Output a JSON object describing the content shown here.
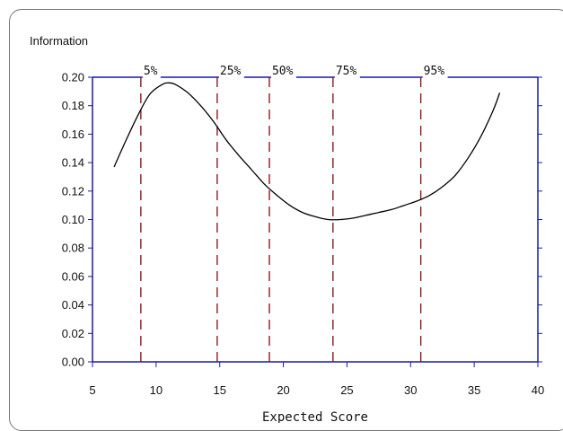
{
  "chart_data": {
    "type": "line",
    "title": "",
    "ylabel": "Information",
    "xlabel": "Expected Score",
    "xlim": [
      5,
      40
    ],
    "ylim": [
      0.0,
      0.2
    ],
    "grid": false,
    "x_ticks": [
      "5",
      "10",
      "15",
      "20",
      "25",
      "30",
      "35",
      "40"
    ],
    "y_ticks": [
      "0.00",
      "0.02",
      "0.04",
      "0.06",
      "0.08",
      "0.10",
      "0.12",
      "0.14",
      "0.16",
      "0.18",
      "0.20"
    ],
    "x_tick_values": [
      5,
      10,
      15,
      20,
      25,
      30,
      35,
      40
    ],
    "y_tick_values": [
      0.0,
      0.02,
      0.04,
      0.06,
      0.08,
      0.1,
      0.12,
      0.14,
      0.16,
      0.18,
      0.2
    ],
    "series": [
      {
        "x": [
          6.7,
          7.5,
          8.5,
          9.5,
          10.5,
          11.0,
          11.5,
          12.5,
          13.5,
          14.5,
          15.5,
          16.5,
          17.5,
          18.5,
          19.5,
          20.5,
          21.5,
          22.5,
          23.5,
          24.5,
          25.5,
          26.5,
          27.5,
          28.5,
          29.5,
          30.5,
          31.5,
          32.5,
          33.5,
          34.5,
          35.5,
          36.5,
          37.0
        ],
        "y": [
          0.137,
          0.153,
          0.172,
          0.188,
          0.195,
          0.196,
          0.195,
          0.189,
          0.18,
          0.169,
          0.156,
          0.145,
          0.135,
          0.125,
          0.117,
          0.11,
          0.105,
          0.102,
          0.1,
          0.1,
          0.101,
          0.103,
          0.105,
          0.107,
          0.11,
          0.113,
          0.117,
          0.123,
          0.131,
          0.143,
          0.158,
          0.177,
          0.189
        ]
      }
    ],
    "percentiles": [
      {
        "label": "5%",
        "x": 8.8
      },
      {
        "label": "25%",
        "x": 14.8
      },
      {
        "label": "50%",
        "x": 18.9
      },
      {
        "label": "75%",
        "x": 23.9
      },
      {
        "label": "95%",
        "x": 30.8
      }
    ],
    "colors": {
      "axis": "#1a1aa6",
      "curve": "#000000",
      "percentile_line": "#8b1a1a"
    }
  }
}
